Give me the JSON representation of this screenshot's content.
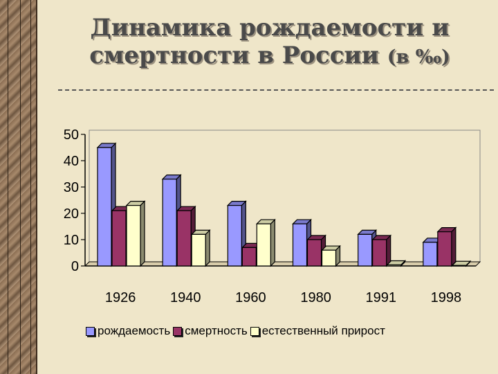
{
  "title": {
    "line1": "Динамика рождаемости и",
    "line2": "смертности в России",
    "unit": "(в ‰)"
  },
  "colors": {
    "series1": "#9999ff",
    "series2": "#993366",
    "series3": "#ffffcc",
    "background": "#efe6c9"
  },
  "chart_data": {
    "type": "bar",
    "title": "Динамика рождаемости и смертности в России (в ‰)",
    "xlabel": "",
    "ylabel": "",
    "categories": [
      "1926",
      "1940",
      "1960",
      "1980",
      "1991",
      "1998"
    ],
    "yticks": [
      "0",
      "10",
      "20",
      "30",
      "40",
      "50"
    ],
    "ylim": [
      0,
      50
    ],
    "grid": false,
    "legend_position": "bottom",
    "series": [
      {
        "name": "рождаемость",
        "values": [
          45,
          33,
          23,
          16,
          12,
          9
        ]
      },
      {
        "name": "смертность",
        "values": [
          21,
          21,
          7,
          10,
          10,
          13
        ]
      },
      {
        "name": "естественный прирост",
        "values": [
          23,
          12,
          16,
          6,
          0.4,
          0.2
        ]
      }
    ]
  }
}
